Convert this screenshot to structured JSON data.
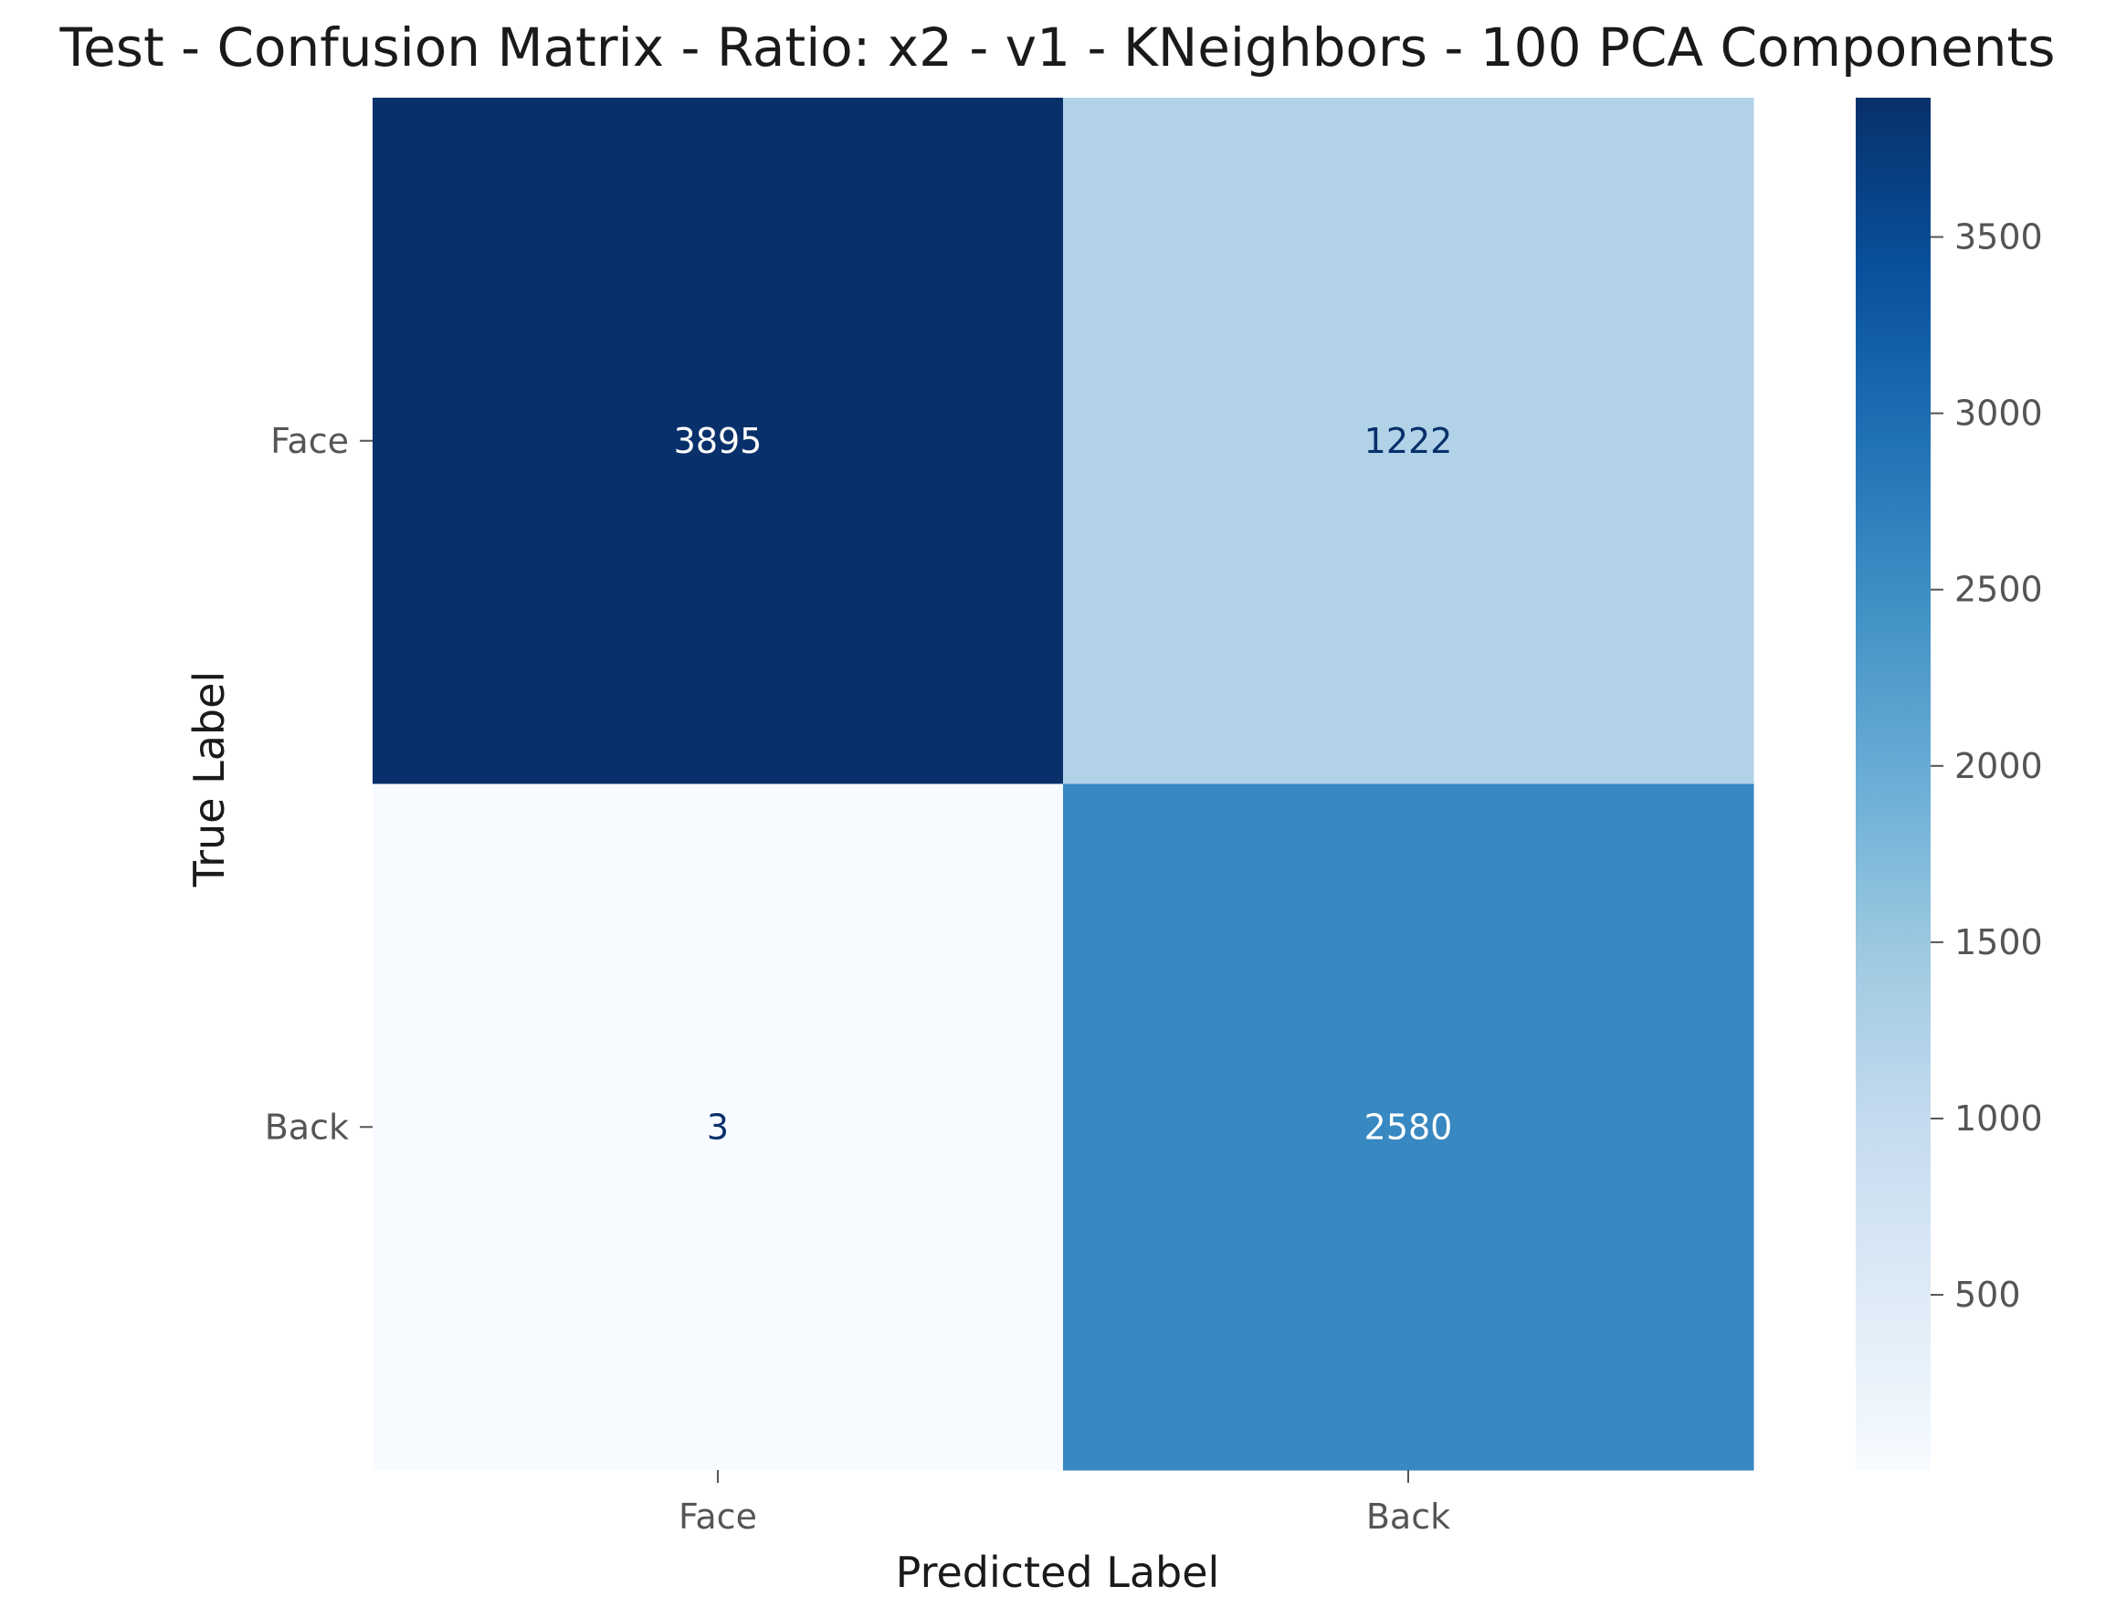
{
  "chart_data": {
    "type": "heatmap",
    "title": "Test - Confusion Matrix - Ratio: x2 - v1 - KNeighbors - 100 PCA Components",
    "xlabel": "Predicted Label",
    "ylabel": "True Label",
    "x_categories": [
      "Face",
      "Back"
    ],
    "y_categories": [
      "Face",
      "Back"
    ],
    "values": [
      [
        3895,
        1222
      ],
      [
        3,
        2580
      ]
    ],
    "colormap": "Blues",
    "color_range": [
      3,
      3895
    ],
    "colorbar": {
      "ticks": [
        500,
        1000,
        1500,
        2000,
        2500,
        3000,
        3500
      ],
      "tick_labels": [
        "500",
        "1000",
        "1500",
        "2000",
        "2500",
        "3000",
        "3500"
      ]
    },
    "grid": false
  },
  "colors": {
    "text_dark": "#08306b",
    "text_light": "#ffffff",
    "tick": "#555555"
  }
}
